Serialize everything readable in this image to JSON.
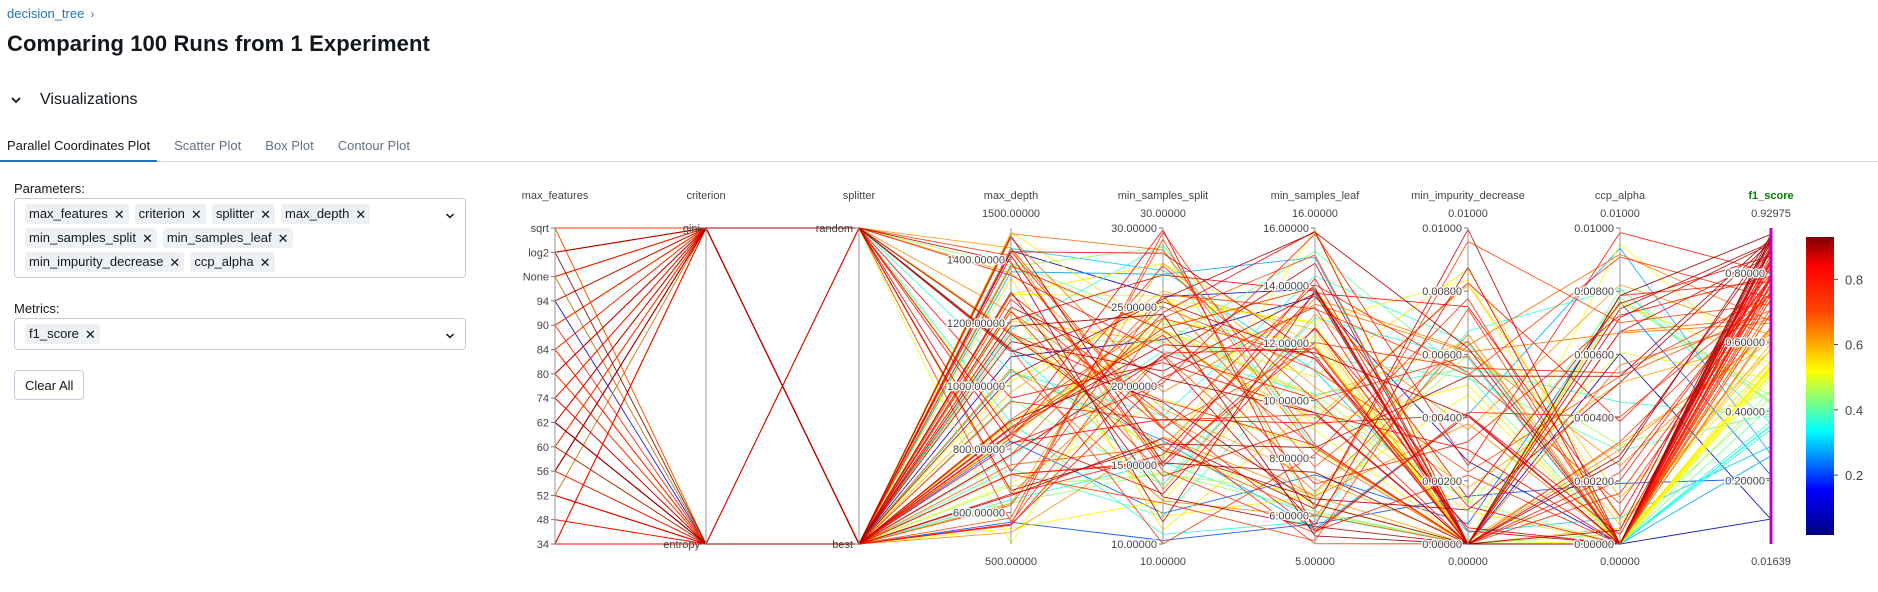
{
  "breadcrumb": {
    "link": "decision_tree",
    "separator": "›"
  },
  "title": "Comparing 100 Runs from 1 Experiment",
  "section": {
    "label": "Visualizations",
    "icon": "chevron-down-icon"
  },
  "tabs": [
    {
      "label": "Parallel Coordinates Plot",
      "active": true
    },
    {
      "label": "Scatter Plot",
      "active": false
    },
    {
      "label": "Box Plot",
      "active": false
    },
    {
      "label": "Contour Plot",
      "active": false
    }
  ],
  "parameters": {
    "label": "Parameters:",
    "selected": [
      "max_features",
      "criterion",
      "splitter",
      "max_depth",
      "min_samples_split",
      "min_samples_leaf",
      "min_impurity_decrease",
      "ccp_alpha"
    ]
  },
  "metrics": {
    "label": "Metrics:",
    "selected": [
      "f1_score"
    ]
  },
  "clear_all_label": "Clear All",
  "chip_remove_glyph": "✕",
  "colors": {
    "accent": "#2272b4",
    "metric_title": "#008000",
    "selected_axis": "#c000c0"
  },
  "chart_data": {
    "type": "parallel_coordinates",
    "colorscale": "Jet (reversed)",
    "colorbar": {
      "ticks": [
        "0.2",
        "0.4",
        "0.6",
        "0.8"
      ],
      "range": [
        0.01639,
        0.92975
      ]
    },
    "axes": [
      {
        "name": "max_features",
        "kind": "categorical",
        "ticks": [
          "sqrt",
          "log2",
          "None",
          "94",
          "90",
          "84",
          "80",
          "74",
          "62",
          "60",
          "56",
          "52",
          "48",
          "34"
        ]
      },
      {
        "name": "criterion",
        "kind": "categorical",
        "ticks": [
          "gini",
          "entropy"
        ]
      },
      {
        "name": "splitter",
        "kind": "categorical",
        "ticks": [
          "random",
          "best"
        ]
      },
      {
        "name": "max_depth",
        "kind": "numeric",
        "top_label": "1500.00000",
        "bottom_label": "500.00000",
        "range": [
          500,
          1500
        ],
        "ticks": [
          600,
          800,
          1000,
          1200,
          1400
        ],
        "tick_labels": [
          "600.00000",
          "800.00000",
          "1000.00000",
          "1200.00000",
          "1400.00000"
        ]
      },
      {
        "name": "min_samples_split",
        "kind": "numeric",
        "top_label": "30.00000",
        "bottom_label": "10.00000",
        "range": [
          10,
          30
        ],
        "ticks": [
          10,
          15,
          20,
          25,
          30
        ],
        "tick_labels": [
          "10.00000",
          "15.00000",
          "20.00000",
          "25.00000",
          "30.00000"
        ]
      },
      {
        "name": "min_samples_leaf",
        "kind": "numeric",
        "top_label": "16.00000",
        "bottom_label": "5.00000",
        "range": [
          5,
          16
        ],
        "ticks": [
          6,
          8,
          10,
          12,
          14,
          16
        ],
        "tick_labels": [
          "6.00000",
          "8.00000",
          "10.00000",
          "12.00000",
          "14.00000",
          "16.00000"
        ]
      },
      {
        "name": "min_impurity_decrease",
        "kind": "numeric",
        "top_label": "0.01000",
        "bottom_label": "0.00000",
        "range": [
          0,
          0.01
        ],
        "ticks": [
          0,
          0.002,
          0.004,
          0.006,
          0.008,
          0.01
        ],
        "tick_labels": [
          "0.00000",
          "0.00200",
          "0.00400",
          "0.00600",
          "0.00800",
          "0.01000"
        ]
      },
      {
        "name": "ccp_alpha",
        "kind": "numeric",
        "top_label": "0.01000",
        "bottom_label": "0.00000",
        "range": [
          0,
          0.01
        ],
        "ticks": [
          0,
          0.002,
          0.004,
          0.006,
          0.008,
          0.01
        ],
        "tick_labels": [
          "0.00000",
          "0.00200",
          "0.00400",
          "0.00600",
          "0.00800",
          "0.01000"
        ]
      },
      {
        "name": "f1_score",
        "kind": "numeric",
        "metric": true,
        "top_label": "0.92975",
        "bottom_label": "0.01639",
        "range": [
          0.01639,
          0.92975
        ],
        "ticks": [
          0.2,
          0.4,
          0.6,
          0.8
        ],
        "tick_labels": [
          "0.20000",
          "0.40000",
          "0.60000",
          "0.80000"
        ]
      }
    ]
  }
}
